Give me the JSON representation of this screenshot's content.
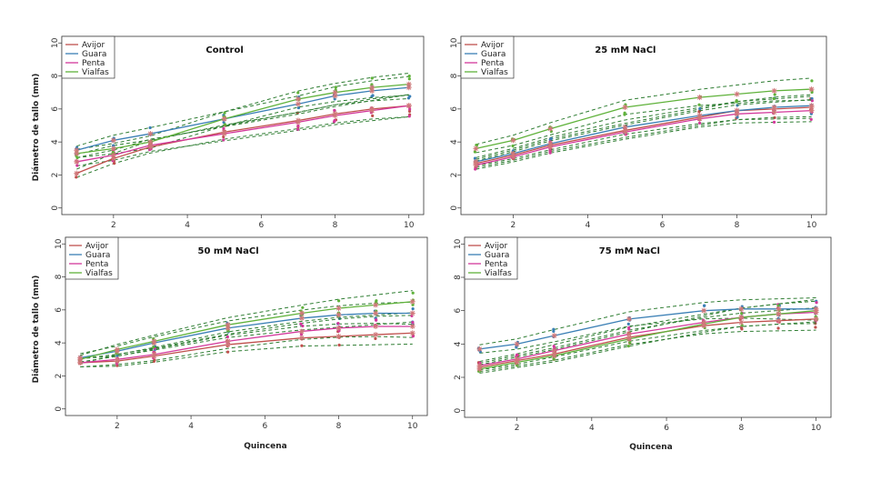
{
  "figure": {
    "ylabel": "Diámetro de tallo (mm)",
    "xlabel": "Quincena"
  },
  "colors": {
    "Avijor": "#c0504d",
    "Guara": "#3a7fb5",
    "Penta": "#d3389b",
    "Vialfas": "#5fb23a",
    "band": "#2e7d32"
  },
  "chart_data": [
    {
      "type": "line",
      "title": "Control",
      "x": [
        1,
        2,
        3,
        5,
        7,
        8,
        9,
        10
      ],
      "xticks": [
        2,
        4,
        6,
        8,
        10
      ],
      "yticks": [
        0,
        2,
        4,
        6,
        8,
        10
      ],
      "xlim": [
        0.6,
        10.4
      ],
      "ylim": [
        -0.4,
        10.4
      ],
      "legend": [
        "Avijor",
        "Guara",
        "Penta",
        "Vialfas"
      ],
      "series": [
        {
          "name": "Avijor",
          "values": [
            2.1,
            3.0,
            3.7,
            4.6,
            5.3,
            5.7,
            6.0,
            6.2
          ]
        },
        {
          "name": "Guara",
          "values": [
            3.5,
            4.1,
            4.5,
            5.4,
            6.3,
            6.8,
            7.1,
            7.3
          ]
        },
        {
          "name": "Penta",
          "values": [
            2.8,
            3.2,
            3.8,
            4.5,
            5.2,
            5.6,
            5.9,
            6.2
          ]
        },
        {
          "name": "Vialfas",
          "values": [
            3.3,
            3.6,
            4.0,
            5.4,
            6.6,
            7.0,
            7.3,
            7.5
          ]
        }
      ]
    },
    {
      "type": "line",
      "title": "25 mM NaCl",
      "x": [
        1,
        2,
        3,
        5,
        7,
        8,
        9,
        10
      ],
      "xticks": [
        2,
        4,
        6,
        8,
        10
      ],
      "yticks": [
        0,
        2,
        4,
        6,
        8,
        10
      ],
      "xlim": [
        0.6,
        10.4
      ],
      "ylim": [
        -0.4,
        10.4
      ],
      "legend": [
        "Avijor",
        "Guara",
        "Penta",
        "Vialfas"
      ],
      "series": [
        {
          "name": "Avijor",
          "values": [
            2.7,
            3.2,
            3.8,
            4.7,
            5.5,
            5.9,
            6.0,
            6.1
          ]
        },
        {
          "name": "Guara",
          "values": [
            2.8,
            3.3,
            3.9,
            4.9,
            5.6,
            5.9,
            6.1,
            6.2
          ]
        },
        {
          "name": "Penta",
          "values": [
            2.6,
            3.1,
            3.7,
            4.6,
            5.4,
            5.7,
            5.8,
            5.9
          ]
        },
        {
          "name": "Vialfas",
          "values": [
            3.6,
            4.1,
            4.8,
            6.1,
            6.7,
            6.9,
            7.1,
            7.2
          ]
        }
      ]
    },
    {
      "type": "line",
      "title": "50 mM NaCl",
      "x": [
        1,
        2,
        3,
        5,
        7,
        8,
        9,
        10
      ],
      "xticks": [
        2,
        4,
        6,
        8,
        10
      ],
      "yticks": [
        0,
        2,
        4,
        6,
        8,
        10
      ],
      "xlim": [
        0.6,
        10.4
      ],
      "ylim": [
        -0.4,
        10.4
      ],
      "legend": [
        "Avijor",
        "Guara",
        "Penta",
        "Vialfas"
      ],
      "series": [
        {
          "name": "Avijor",
          "values": [
            2.8,
            2.9,
            3.2,
            3.9,
            4.3,
            4.4,
            4.5,
            4.6
          ]
        },
        {
          "name": "Guara",
          "values": [
            3.1,
            3.5,
            4.0,
            4.9,
            5.5,
            5.7,
            5.8,
            5.8
          ]
        },
        {
          "name": "Penta",
          "values": [
            2.8,
            3.0,
            3.3,
            4.1,
            4.7,
            4.9,
            5.0,
            5.0
          ]
        },
        {
          "name": "Vialfas",
          "values": [
            3.0,
            3.6,
            4.1,
            5.1,
            5.8,
            6.1,
            6.3,
            6.5
          ]
        }
      ]
    },
    {
      "type": "line",
      "title": "75 mM NaCl",
      "x": [
        1,
        2,
        3,
        5,
        7,
        8,
        9,
        10
      ],
      "xticks": [
        2,
        4,
        6,
        8,
        10
      ],
      "yticks": [
        0,
        2,
        4,
        6,
        8,
        10
      ],
      "xlim": [
        0.6,
        10.4
      ],
      "ylim": [
        -0.4,
        10.4
      ],
      "legend": [
        "Avijor",
        "Guara",
        "Penta",
        "Vialfas"
      ],
      "series": [
        {
          "name": "Avijor",
          "values": [
            2.6,
            3.0,
            3.4,
            4.4,
            5.1,
            5.3,
            5.4,
            5.5
          ]
        },
        {
          "name": "Guara",
          "values": [
            3.7,
            4.0,
            4.5,
            5.5,
            6.0,
            6.1,
            6.1,
            6.1
          ]
        },
        {
          "name": "Penta",
          "values": [
            2.7,
            3.1,
            3.6,
            4.6,
            5.3,
            5.6,
            5.8,
            5.9
          ]
        },
        {
          "name": "Vialfas",
          "values": [
            2.5,
            2.9,
            3.3,
            4.3,
            5.2,
            5.6,
            5.8,
            6.0
          ]
        }
      ]
    }
  ]
}
